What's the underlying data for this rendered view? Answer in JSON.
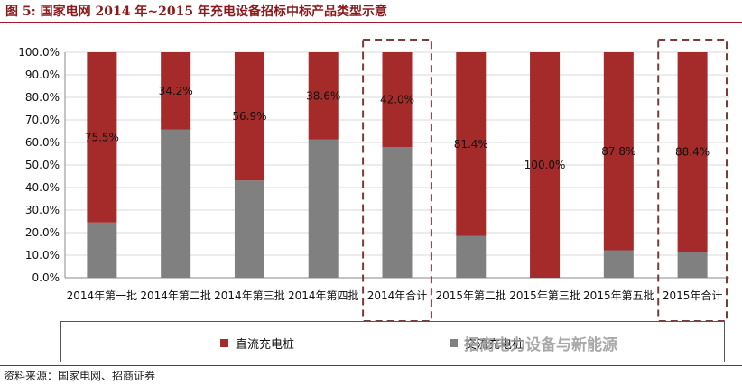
{
  "header": {
    "title": "图 5:  国家电网 2014 年~2015 年充电设备招标中标产品类型示意"
  },
  "chart_data": {
    "type": "bar",
    "stacked": true,
    "categories": [
      "2014年第一批",
      "2014年第二批",
      "2014年第三批",
      "2014年第四批",
      "2014年合计",
      "2015年第二批",
      "2015年第三批",
      "2015年第五批",
      "2015年合计"
    ],
    "series": [
      {
        "name": "交流充电桩",
        "color": "#808080",
        "values": [
          24.5,
          65.8,
          43.1,
          61.4,
          58.0,
          18.6,
          0.0,
          12.2,
          11.6
        ]
      },
      {
        "name": "直流充电桩",
        "color": "#a52a2a",
        "values": [
          75.5,
          34.2,
          56.9,
          38.6,
          42.0,
          81.4,
          100.0,
          87.8,
          88.4
        ]
      }
    ],
    "data_labels": [
      "75.5%",
      "34.2%",
      "56.9%",
      "38.6%",
      "42.0%",
      "81.4%",
      "100.0%",
      "87.8%",
      "88.4%"
    ],
    "yticks": [
      "0.0%",
      "10.0%",
      "20.0%",
      "30.0%",
      "40.0%",
      "50.0%",
      "60.0%",
      "70.0%",
      "80.0%",
      "90.0%",
      "100.0%"
    ],
    "ylim": [
      0,
      100
    ],
    "highlighted_categories": [
      "2014年合计",
      "2015年合计"
    ],
    "legend_position": "bottom"
  },
  "legend": {
    "dc_label": "直流充电桩",
    "ac_label": "交流充电桩"
  },
  "watermark": "招商电力设备与新能源",
  "footer": {
    "source": "资料来源：国家电网、招商证券"
  }
}
